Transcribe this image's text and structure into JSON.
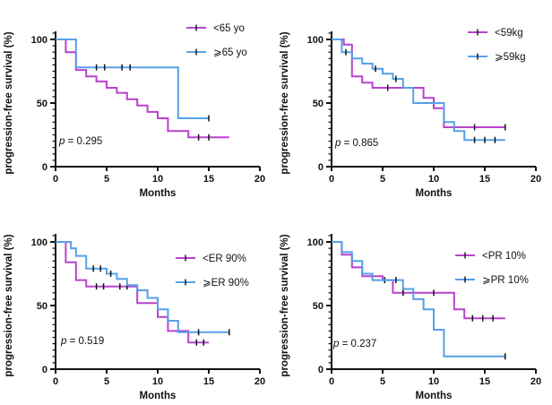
{
  "figure": {
    "background": "#ffffff",
    "axis_color": "#111111",
    "censor_color": "#111111"
  },
  "chart_data": [
    {
      "type": "line",
      "subtype": "kaplan-meier-step",
      "panel": "age",
      "xlabel": "Months",
      "ylabel": "progression-free survival (%)",
      "xlim": [
        0,
        20
      ],
      "ylim": [
        0,
        100
      ],
      "xticks": [
        0,
        5,
        10,
        15,
        20
      ],
      "yticks": [
        0,
        50,
        100
      ],
      "y_minor_step": 5,
      "grid": false,
      "legend_position": "inside-top-right",
      "p_text": "p = 0.295",
      "series": [
        {
          "name": "<65 yo",
          "color": "#b842cd",
          "x": [
            0,
            1,
            2,
            3,
            4,
            5,
            6,
            7,
            8,
            9,
            10,
            11,
            13
          ],
          "y": [
            100,
            90,
            76,
            71,
            67,
            62,
            58,
            53,
            48,
            43,
            38,
            28,
            23
          ],
          "end_x": 17,
          "censor_x": [
            14,
            15
          ]
        },
        {
          "name": "⩾65 yo",
          "color": "#57a0e8",
          "x": [
            0,
            2,
            12
          ],
          "y": [
            100,
            78,
            38
          ],
          "end_x": 15,
          "censor_x": [
            4,
            4.8,
            6.5,
            7.3,
            15
          ]
        }
      ],
      "layout": {
        "legend_x": 208,
        "legend_rows_y": [
          31,
          58
        ],
        "p_xy": [
          66,
          161
        ]
      }
    },
    {
      "type": "line",
      "subtype": "kaplan-meier-step",
      "panel": "weight",
      "xlabel": "Months",
      "ylabel": "progression-free survival (%)",
      "xlim": [
        0,
        20
      ],
      "ylim": [
        0,
        100
      ],
      "xticks": [
        0,
        5,
        10,
        15,
        20
      ],
      "yticks": [
        0,
        50,
        100
      ],
      "y_minor_step": 5,
      "grid": false,
      "legend_position": "inside-top-right",
      "p_text": "p = 0.865",
      "series": [
        {
          "name": "<59kg",
          "color": "#b842cd",
          "x": [
            0,
            1.2,
            2,
            3,
            4,
            9,
            10,
            11
          ],
          "y": [
            100,
            96,
            71,
            66,
            62,
            54,
            46,
            31
          ],
          "end_x": 17,
          "censor_x": [
            5.5,
            14,
            17
          ]
        },
        {
          "name": "⩾59kg",
          "color": "#57a0e8",
          "x": [
            0,
            1,
            2,
            3,
            4,
            5,
            6,
            7,
            8,
            11,
            12,
            13
          ],
          "y": [
            100,
            90,
            85,
            81,
            77,
            73,
            69,
            62,
            50,
            35,
            28,
            21
          ],
          "end_x": 17,
          "censor_x": [
            1.4,
            4.3,
            6.3,
            14,
            15,
            16
          ]
        }
      ],
      "layout": {
        "legend_x": 214,
        "legend_rows_y": [
          36,
          63
        ],
        "p_xy": [
          66,
          163
        ]
      }
    },
    {
      "type": "line",
      "subtype": "kaplan-meier-step",
      "panel": "er",
      "xlabel": "Months",
      "ylabel": "progression-free survival (%)",
      "xlim": [
        0,
        20
      ],
      "ylim": [
        0,
        100
      ],
      "xticks": [
        0,
        5,
        10,
        15,
        20
      ],
      "yticks": [
        0,
        50,
        100
      ],
      "y_minor_step": 5,
      "grid": false,
      "legend_position": "inside-top-right",
      "p_text": "p = 0.519",
      "series": [
        {
          "name": "<ER 90%",
          "color": "#b842cd",
          "x": [
            0,
            1,
            2,
            3,
            8,
            10,
            11,
            13
          ],
          "y": [
            100,
            84,
            70,
            65,
            52,
            41,
            30,
            21
          ],
          "end_x": 15,
          "censor_x": [
            4,
            4.7,
            6.3,
            7,
            13.8,
            14.5
          ]
        },
        {
          "name": "⩾ER 90%",
          "color": "#57a0e8",
          "x": [
            0,
            1.5,
            2,
            3,
            5,
            6,
            7,
            8,
            9,
            10,
            11,
            12
          ],
          "y": [
            100,
            95,
            89,
            79,
            75,
            71,
            66,
            62,
            56,
            47,
            38,
            29
          ],
          "end_x": 17,
          "censor_x": [
            3.7,
            4.4,
            5.4,
            14,
            17
          ]
        }
      ],
      "layout": {
        "legend_x": 196,
        "legend_rows_y": [
          62,
          89
        ],
        "p_xy": [
          68,
          158
        ]
      }
    },
    {
      "type": "line",
      "subtype": "kaplan-meier-step",
      "panel": "pr",
      "xlabel": "Months",
      "ylabel": "progression-free survival (%)",
      "xlim": [
        0,
        20
      ],
      "ylim": [
        0,
        100
      ],
      "xticks": [
        0,
        5,
        10,
        15,
        20
      ],
      "yticks": [
        0,
        50,
        100
      ],
      "y_minor_step": 5,
      "grid": false,
      "legend_position": "inside-top-right",
      "p_text": "p = 0.237",
      "series": [
        {
          "name": "<PR 10%",
          "color": "#b842cd",
          "x": [
            0,
            1,
            2,
            3,
            5,
            6,
            12,
            13
          ],
          "y": [
            100,
            90,
            80,
            73,
            70,
            60,
            47,
            40
          ],
          "end_x": 17,
          "censor_x": [
            4,
            5.2,
            7,
            8,
            10,
            13.8,
            14.8,
            15.8
          ]
        },
        {
          "name": "⩾PR 10%",
          "color": "#57a0e8",
          "x": [
            0,
            1,
            2,
            3,
            4,
            7,
            8,
            9,
            10,
            11
          ],
          "y": [
            100,
            92,
            85,
            75,
            70,
            63,
            55,
            47,
            31,
            10
          ],
          "end_x": 17,
          "censor_x": [
            6.3,
            17
          ]
        }
      ],
      "layout": {
        "legend_x": 200,
        "legend_rows_y": [
          59,
          86
        ],
        "p_xy": [
          64,
          161
        ]
      }
    }
  ]
}
